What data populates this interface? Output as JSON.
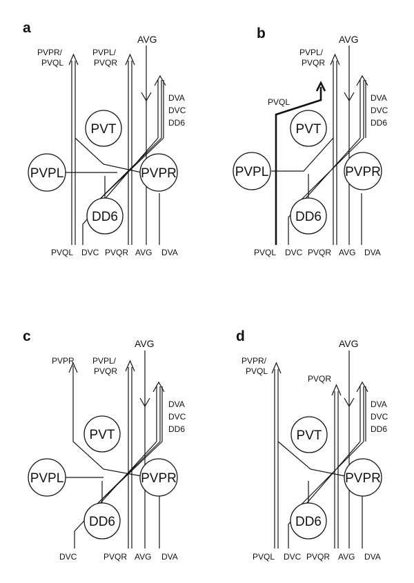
{
  "panels": [
    {
      "letter": "a",
      "cells": {
        "pvt": "PVT",
        "pvpl": "PVPL",
        "pvpr": "PVPR",
        "dd6": "DD6"
      },
      "labels": {
        "top_left_1": "PVPR/",
        "top_left_2": "PVQL",
        "top_mid_1": "PVPL/",
        "top_mid_2": "PVQR",
        "top_avg": "AVG",
        "side_1": "DVA",
        "side_2": "DVC",
        "side_3": "DD6",
        "bottom": [
          "PVQL",
          "DVC",
          "PVQR",
          "AVG",
          "DVA"
        ]
      }
    },
    {
      "letter": "b",
      "cells": {
        "pvt": "PVT",
        "pvpl": "PVPL",
        "pvpr": "PVPR",
        "dd6": "DD6"
      },
      "labels": {
        "top_mid_1": "PVPL/",
        "top_mid_2": "PVQR",
        "top_avg": "AVG",
        "pvql_branch": "PVQL",
        "side_1": "DVA",
        "side_2": "DVC",
        "side_3": "DD6",
        "bottom": [
          "PVQL",
          "DVC",
          "PVQR",
          "AVG",
          "DVA"
        ]
      }
    },
    {
      "letter": "c",
      "cells": {
        "pvt": "PVT",
        "pvpl": "PVPL",
        "pvpr": "PVPR",
        "dd6": "DD6"
      },
      "labels": {
        "top_left_1": "PVPR",
        "top_mid_1": "PVPL/",
        "top_mid_2": "PVQR",
        "top_avg": "AVG",
        "side_1": "DVA",
        "side_2": "DVC",
        "side_3": "DD6",
        "bottom": [
          "DVC",
          "PVQR",
          "AVG",
          "DVA"
        ]
      }
    },
    {
      "letter": "d",
      "cells": {
        "pvt": "PVT",
        "pvpl": "",
        "pvpr": "PVPR",
        "dd6": "DD6"
      },
      "labels": {
        "top_left_1": "PVPR/",
        "top_left_2": "PVQL",
        "top_mid_1": "PVQR",
        "top_avg": "AVG",
        "side_1": "DVA",
        "side_2": "DVC",
        "side_3": "DD6",
        "bottom": [
          "PVQL",
          "DVC",
          "PVQR",
          "AVG",
          "DVA"
        ]
      }
    }
  ]
}
